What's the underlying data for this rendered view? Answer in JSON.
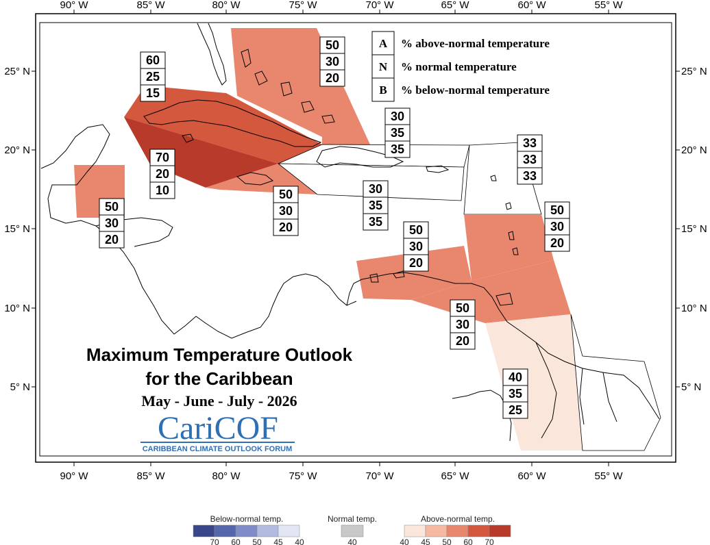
{
  "map": {
    "lon_ticks": [
      "90° W",
      "85° W",
      "80° W",
      "75° W",
      "70° W",
      "65° W",
      "60° W",
      "55° W"
    ],
    "lat_ticks": [
      "25° N",
      "20° N",
      "15° N",
      "10° N",
      "5° N"
    ]
  },
  "legend": {
    "rows": [
      {
        "letter": "A",
        "text": "% above-normal temperature"
      },
      {
        "letter": "N",
        "text": "% normal temperature"
      },
      {
        "letter": "B",
        "text": "% below-normal temperature"
      }
    ]
  },
  "regions": [
    {
      "name": "bahamas",
      "above": "50",
      "normal": "30",
      "below": "20",
      "color": "#e8876e"
    },
    {
      "name": "cuba-north",
      "above": "60",
      "normal": "25",
      "below": "15",
      "color": "#d4583e"
    },
    {
      "name": "cuba-south",
      "above": "70",
      "normal": "20",
      "below": "10",
      "color": "#b83a2a"
    },
    {
      "name": "hispaniola-north",
      "above": "30",
      "normal": "35",
      "below": "35",
      "color": "#ffffff"
    },
    {
      "name": "jamaica",
      "above": "50",
      "normal": "30",
      "below": "20",
      "color": "#e8876e"
    },
    {
      "name": "belize",
      "above": "50",
      "normal": "30",
      "below": "20",
      "color": "#e8876e"
    },
    {
      "name": "hispaniola-south",
      "above": "30",
      "normal": "35",
      "below": "35",
      "color": "#ffffff"
    },
    {
      "name": "leeward-islands",
      "above": "33",
      "normal": "33",
      "below": "33",
      "color": "#ffffff"
    },
    {
      "name": "windward-islands",
      "above": "50",
      "normal": "30",
      "below": "20",
      "color": "#e8876e"
    },
    {
      "name": "abc-islands",
      "above": "50",
      "normal": "30",
      "below": "20",
      "color": "#e8876e"
    },
    {
      "name": "trinidad",
      "above": "50",
      "normal": "30",
      "below": "20",
      "color": "#e8876e"
    },
    {
      "name": "guianas",
      "above": "40",
      "normal": "35",
      "below": "25",
      "color": "#fbe6dc"
    }
  ],
  "title": {
    "line1": "Maximum Temperature Outlook",
    "line2": "for the Caribbean",
    "period": "May - June - July - 2026"
  },
  "logo": {
    "name": "CariCOF",
    "subtitle": "CARIBBEAN CLIMATE OUTLOOK FORUM"
  },
  "color_scale": {
    "below": {
      "label": "Below-normal temp.",
      "ticks": [
        "70",
        "60",
        "50",
        "45",
        "40"
      ],
      "colors": [
        "#39478a",
        "#5566ad",
        "#7f8cc7",
        "#b3bbe0",
        "#e2e5f3"
      ]
    },
    "normal": {
      "label": "Normal temp.",
      "ticks": [
        "40"
      ],
      "colors": [
        "#c8c8c8"
      ]
    },
    "above": {
      "label": "Above-normal temp.",
      "ticks": [
        "40",
        "45",
        "50",
        "60",
        "70"
      ],
      "colors": [
        "#fbe6dc",
        "#f5b8a1",
        "#e8876e",
        "#d4583e",
        "#b83a2a"
      ]
    }
  }
}
